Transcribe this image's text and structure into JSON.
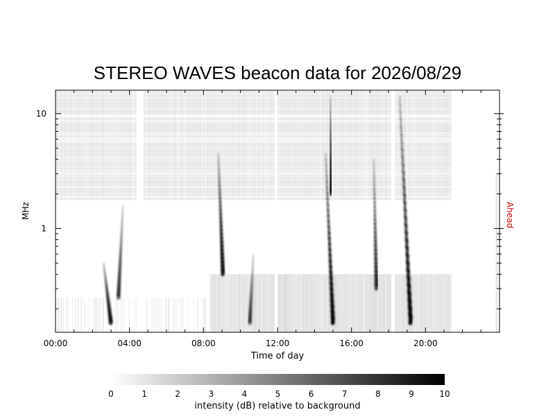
{
  "chart_data": {
    "type": "heatmap",
    "title": "STEREO WAVES beacon data for 2026/08/29",
    "xlabel": "Time of day",
    "ylabel": "MHz",
    "right_label": "Ahead",
    "right_label_color": "#cc0000",
    "x_unit": "hours",
    "xlim": [
      0,
      24
    ],
    "x_ticks": [
      {
        "value": 0,
        "label": "00:00"
      },
      {
        "value": 4,
        "label": "04:00"
      },
      {
        "value": 8,
        "label": "08:00"
      },
      {
        "value": 12,
        "label": "12:00"
      },
      {
        "value": 16,
        "label": "16:00"
      },
      {
        "value": 20,
        "label": "20:00"
      }
    ],
    "y_scale": "log",
    "ylim": [
      0.125,
      16
    ],
    "y_ticks": [
      {
        "value": 1,
        "label": "1"
      },
      {
        "value": 10,
        "label": "10"
      }
    ],
    "data_gaps_hours": [
      [
        4.4,
        4.75
      ],
      [
        11.85,
        12.0
      ],
      [
        18.15,
        18.3
      ],
      [
        21.4,
        24.0
      ]
    ],
    "bursts": [
      {
        "start_hour": 2.6,
        "end_hour": 3.0,
        "fmin_mhz": 0.15,
        "fmax_mhz": 0.5,
        "peak_db": 8
      },
      {
        "start_hour": 3.65,
        "end_hour": 3.4,
        "fmin_mhz": 0.25,
        "fmax_mhz": 1.6,
        "peak_db": 6
      },
      {
        "start_hour": 8.8,
        "end_hour": 9.05,
        "fmin_mhz": 0.4,
        "fmax_mhz": 4.5,
        "peak_db": 9
      },
      {
        "start_hour": 10.7,
        "end_hour": 10.5,
        "fmin_mhz": 0.15,
        "fmax_mhz": 0.6,
        "peak_db": 5
      },
      {
        "start_hour": 14.6,
        "end_hour": 15.0,
        "fmin_mhz": 0.15,
        "fmax_mhz": 4.5,
        "peak_db": 10
      },
      {
        "start_hour": 14.85,
        "end_hour": 14.9,
        "fmin_mhz": 2.0,
        "fmax_mhz": 14,
        "peak_db": 8
      },
      {
        "start_hour": 17.2,
        "end_hour": 17.35,
        "fmin_mhz": 0.3,
        "fmax_mhz": 4.0,
        "peak_db": 7
      },
      {
        "start_hour": 18.6,
        "end_hour": 19.2,
        "fmin_mhz": 0.15,
        "fmax_mhz": 14,
        "peak_db": 10
      }
    ],
    "colorbar": {
      "label": "intensity (dB) relative to background",
      "range": [
        0,
        10
      ],
      "ticks": [
        "0",
        "1",
        "2",
        "3",
        "4",
        "5",
        "6",
        "7",
        "8",
        "9",
        "10"
      ],
      "colors": [
        "#ffffff",
        "#000000"
      ]
    }
  }
}
